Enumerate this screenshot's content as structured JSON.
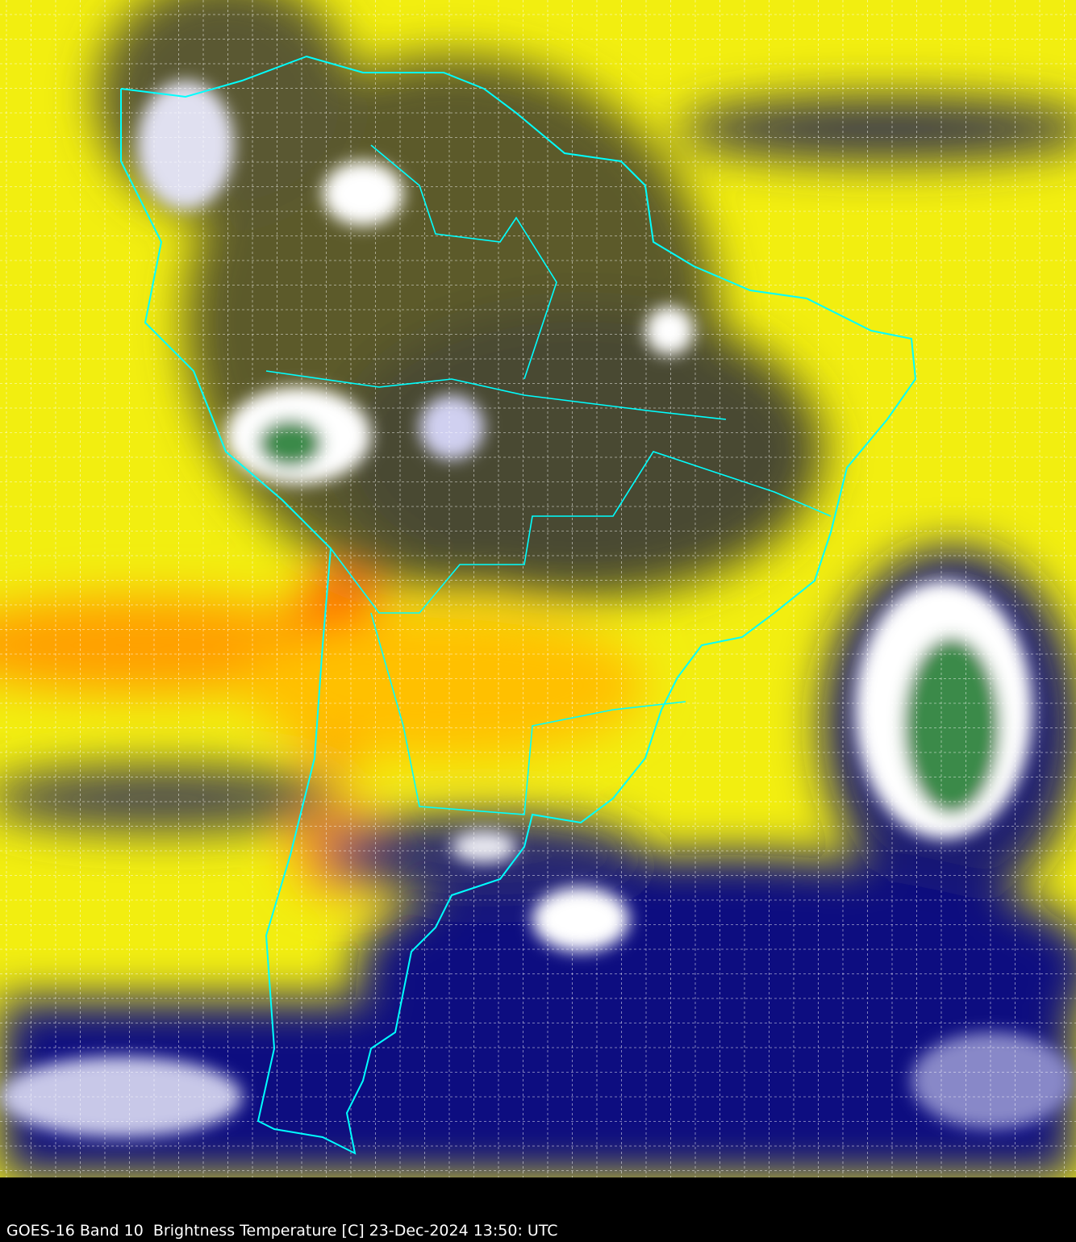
{
  "caption": "GOES-16 Band 10  Brightness Temperature [C] 23-Dec-2024 13:50: UTC",
  "image": {
    "satellite": "GOES-16",
    "band": "Band 10",
    "product": "Brightness Temperature [C]",
    "date": "23-Dec-2024",
    "time": "13:50: UTC",
    "region": "South America",
    "graticule": true,
    "colors": {
      "warm": "#ffff00",
      "hot": "#ff4000",
      "moist": "#000080",
      "mid": "#6b6b2a",
      "cold_cloud": "#ffffff",
      "very_cold": "#3a8a4a",
      "borders": "#00ffff"
    }
  }
}
